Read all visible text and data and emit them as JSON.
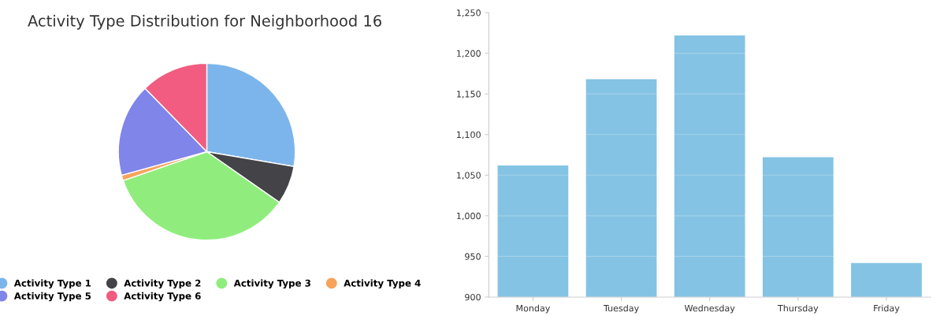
{
  "chart_data": [
    {
      "type": "pie",
      "title": "Activity Type Distribution for Neighborhood 16",
      "categories": [
        "Activity Type 1",
        "Activity Type 2",
        "Activity Type 3",
        "Activity Type 4",
        "Activity Type 5",
        "Activity Type 6"
      ],
      "values": [
        27.7,
        7.0,
        35.0,
        1.0,
        17.0,
        12.3
      ],
      "colors": [
        "#7cb5ec",
        "#434348",
        "#90ed7d",
        "#f7a35c",
        "#8085e9",
        "#f15c80"
      ],
      "legend": "bottom"
    },
    {
      "type": "bar",
      "categories": [
        "Monday",
        "Tuesday",
        "Wednesday",
        "Thursday",
        "Friday"
      ],
      "values": [
        1062,
        1168,
        1222,
        1072,
        942
      ],
      "color": "#84c3e3",
      "ylim": [
        900,
        1250
      ],
      "yticks": [
        900,
        950,
        {
          "value": 1000,
          "label": "1,000"
        },
        {
          "value": 1050,
          "label": "1,050"
        },
        {
          "value": 1100,
          "label": "1,100"
        },
        {
          "value": 1150,
          "label": "1,150"
        },
        {
          "value": 1200,
          "label": "1,200"
        },
        {
          "value": 1250,
          "label": "1,250"
        }
      ],
      "grid": "y"
    }
  ]
}
